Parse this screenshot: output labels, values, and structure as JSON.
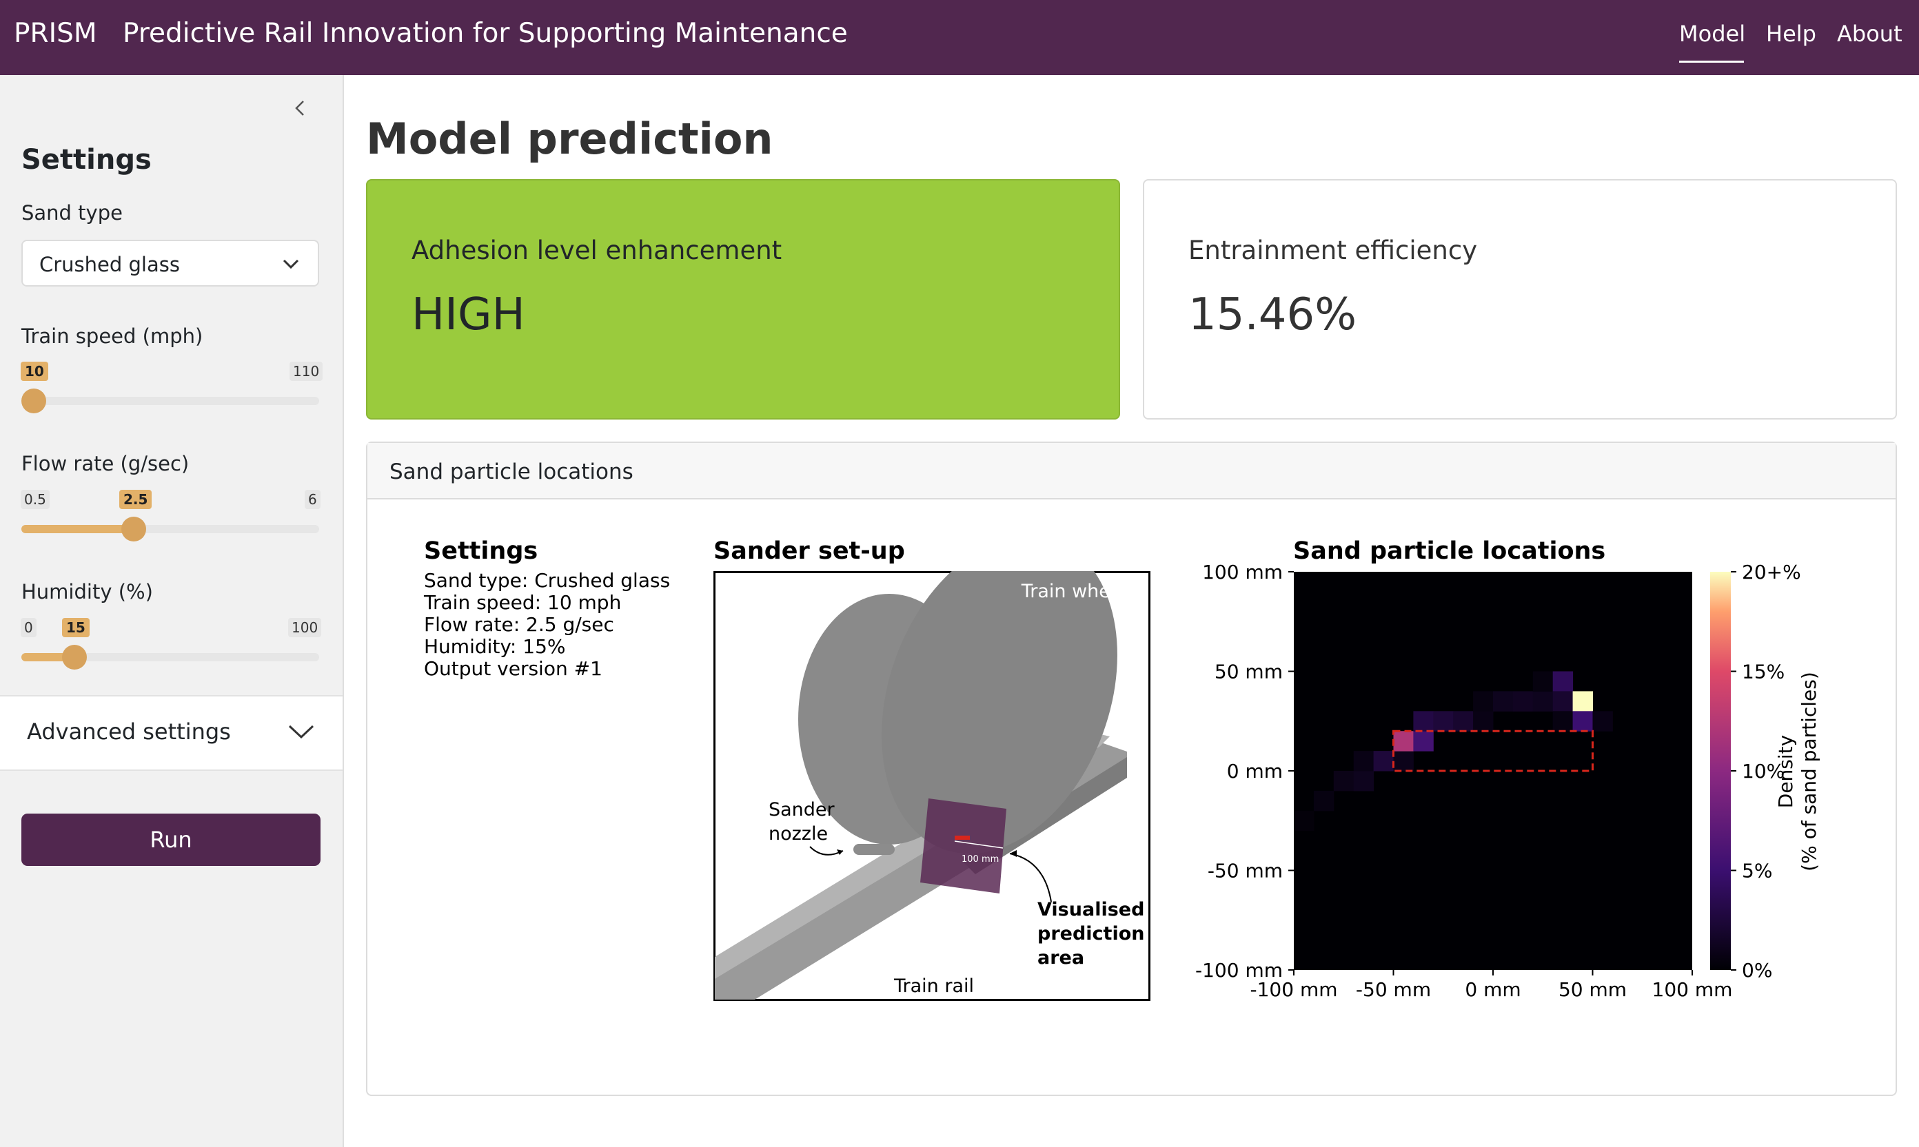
{
  "nav": {
    "brand": "PRISM",
    "subtitle": "Predictive Rail Innovation for Supporting Maintenance",
    "links": [
      "Model",
      "Help",
      "About"
    ]
  },
  "sidebar": {
    "title": "Settings",
    "sand_type": {
      "label": "Sand type",
      "value": "Crushed glass"
    },
    "train_speed": {
      "label": "Train speed (mph)",
      "min": "10",
      "max": "110",
      "value": "10"
    },
    "flow_rate": {
      "label": "Flow rate (g/sec)",
      "min": "0.5",
      "max": "6",
      "value": "2.5"
    },
    "humidity": {
      "label": "Humidity (%)",
      "min": "0",
      "max": "100",
      "value": "15"
    },
    "advanced": "Advanced settings",
    "run": "Run"
  },
  "main": {
    "title": "Model prediction",
    "adhesion": {
      "title": "Adhesion level enhancement",
      "value": "HIGH"
    },
    "efficiency": {
      "title": "Entrainment efficiency",
      "value": "15.46%"
    },
    "sand_card_title": "Sand particle locations"
  },
  "figure": {
    "settings_title": "Settings",
    "settings_lines": [
      "Sand type: Crushed glass",
      "Train speed: 10 mph",
      "Flow rate: 2.5 g/sec",
      "Humidity: 15%",
      "Output version #1"
    ],
    "setup_title": "Sander set-up",
    "setup_labels": {
      "wheel": "Train wheel",
      "nozzle_1": "Sander",
      "nozzle_2": "nozzle",
      "area_1": "Visualised",
      "area_2": "prediction",
      "area_3": "area",
      "rail": "Train rail",
      "scale": "100 mm"
    },
    "colors": {
      "brand": "#51274f",
      "accent": "#e3b169",
      "green": "#9acb3d"
    }
  },
  "chart_data": {
    "type": "heatmap",
    "title": "Sand particle locations",
    "x_ticks": [
      "-100 mm",
      "-50 mm",
      "0 mm",
      "50 mm",
      "100 mm"
    ],
    "y_ticks": [
      "100 mm",
      "50 mm",
      "0 mm",
      "-50 mm",
      "-100 mm"
    ],
    "xlim": [
      -100,
      100
    ],
    "ylim": [
      -100,
      100
    ],
    "colorbar": {
      "label_1": "Density",
      "label_2": "(% of sand particles)",
      "ticks": [
        "20+%",
        "15%",
        "10%",
        "5%",
        "0%"
      ],
      "range": [
        0,
        20
      ]
    },
    "cells": [
      {
        "x": -100,
        "y": -30,
        "v": 0.3
      },
      {
        "x": -90,
        "y": -20,
        "v": 0.6
      },
      {
        "x": -80,
        "y": -10,
        "v": 0.9
      },
      {
        "x": -70,
        "y": -10,
        "v": 1.2
      },
      {
        "x": -70,
        "y": 0,
        "v": 0.8
      },
      {
        "x": -60,
        "y": 0,
        "v": 2.5
      },
      {
        "x": -50,
        "y": 0,
        "v": 1.0
      },
      {
        "x": -50,
        "y": 10,
        "v": 12.0
      },
      {
        "x": -40,
        "y": 10,
        "v": 5.5
      },
      {
        "x": -40,
        "y": 20,
        "v": 3.0
      },
      {
        "x": -30,
        "y": 20,
        "v": 2.5
      },
      {
        "x": -20,
        "y": 20,
        "v": 2.0
      },
      {
        "x": -10,
        "y": 20,
        "v": 0.8
      },
      {
        "x": -10,
        "y": 30,
        "v": 0.6
      },
      {
        "x": 0,
        "y": 30,
        "v": 1.2
      },
      {
        "x": 10,
        "y": 30,
        "v": 1.4
      },
      {
        "x": 20,
        "y": 30,
        "v": 1.2
      },
      {
        "x": 20,
        "y": 40,
        "v": 0.5
      },
      {
        "x": 30,
        "y": 40,
        "v": 4.0
      },
      {
        "x": 30,
        "y": 30,
        "v": 2.0
      },
      {
        "x": 30,
        "y": 20,
        "v": 0.6
      },
      {
        "x": 40,
        "y": 30,
        "v": 20.0
      },
      {
        "x": 40,
        "y": 20,
        "v": 5.0
      },
      {
        "x": 50,
        "y": 20,
        "v": 0.8
      }
    ],
    "region": {
      "x0": -50,
      "x1": 50,
      "y0": 0,
      "y1": 20
    }
  }
}
